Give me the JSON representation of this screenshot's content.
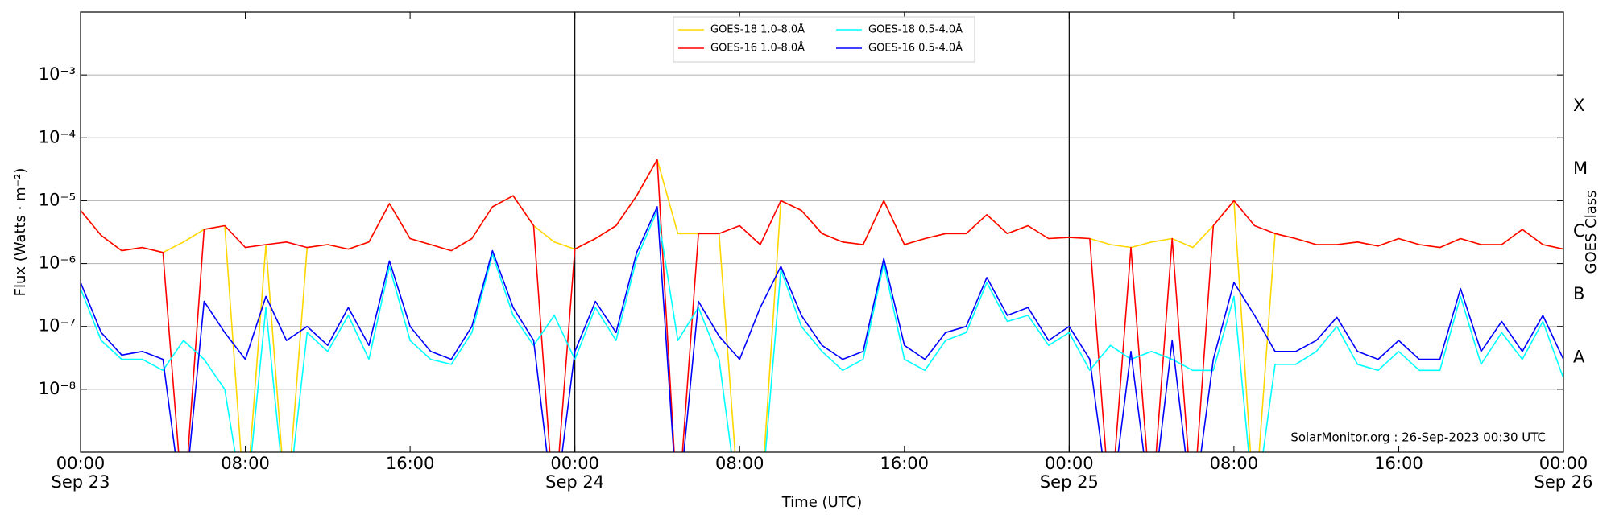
{
  "chart_data": {
    "type": "line",
    "y_scale": "log",
    "grid": true,
    "legend": "upper center",
    "ylabel": "Flux (Watts · m⁻²)",
    "xlabel": "Time (UTC)",
    "y2label": "GOES Class",
    "annotation": "SolarMonitor.org : 26-Sep-2023 00:30 UTC",
    "xlim": [
      0,
      72
    ],
    "ylim": [
      1e-09,
      0.01
    ],
    "xticks": [
      {
        "value": 0,
        "label": "00:00"
      },
      {
        "value": 8,
        "label": "08:00"
      },
      {
        "value": 16,
        "label": "16:00"
      },
      {
        "value": 24,
        "label": "00:00"
      },
      {
        "value": 32,
        "label": "08:00"
      },
      {
        "value": 40,
        "label": "16:00"
      },
      {
        "value": 48,
        "label": "00:00"
      },
      {
        "value": 56,
        "label": "08:00"
      },
      {
        "value": 64,
        "label": "16:00"
      },
      {
        "value": 72,
        "label": "00:00"
      }
    ],
    "x_day_labels": [
      {
        "value": 0,
        "label": "Sep 23"
      },
      {
        "value": 24,
        "label": "Sep 24"
      },
      {
        "value": 48,
        "label": "Sep 25"
      },
      {
        "value": 72,
        "label": "Sep 26"
      }
    ],
    "yticks": [
      {
        "value": 1e-08,
        "label": "10⁻⁸"
      },
      {
        "value": 1e-07,
        "label": "10⁻⁷"
      },
      {
        "value": 1e-06,
        "label": "10⁻⁶"
      },
      {
        "value": 1e-05,
        "label": "10⁻⁵"
      },
      {
        "value": 0.0001,
        "label": "10⁻⁴"
      },
      {
        "value": 0.001,
        "label": "10⁻³"
      }
    ],
    "class_labels": [
      {
        "value": 3.2e-08,
        "label": "A"
      },
      {
        "value": 3.2e-07,
        "label": "B"
      },
      {
        "value": 3.2e-06,
        "label": "C"
      },
      {
        "value": 3.2e-05,
        "label": "M"
      },
      {
        "value": 0.00032,
        "label": "X"
      }
    ],
    "x": [
      0,
      1,
      2,
      3,
      4,
      5,
      6,
      7,
      8,
      9,
      10,
      11,
      12,
      13,
      14,
      15,
      16,
      17,
      18,
      19,
      20,
      21,
      22,
      23,
      24,
      25,
      26,
      27,
      28,
      29,
      30,
      31,
      32,
      33,
      34,
      35,
      36,
      37,
      38,
      39,
      40,
      41,
      42,
      43,
      44,
      45,
      46,
      47,
      48,
      49,
      50,
      51,
      52,
      53,
      54,
      55,
      56,
      57,
      58,
      59,
      60,
      61,
      62,
      63,
      64,
      65,
      66,
      67,
      68,
      69,
      70,
      71,
      72
    ],
    "series": [
      {
        "name": "GOES-18 1.0-8.0Å",
        "color": "#ffd700",
        "values": [
          7e-06,
          2.8e-06,
          1.6e-06,
          1.8e-06,
          1.5e-06,
          2.2e-06,
          3.5e-06,
          4e-06,
          1e-10,
          2e-06,
          1e-10,
          1.8e-06,
          2e-06,
          1.7e-06,
          2.2e-06,
          9e-06,
          2.5e-06,
          2e-06,
          1.6e-06,
          2.5e-06,
          8e-06,
          1.2e-05,
          4e-06,
          2.2e-06,
          1.7e-06,
          2.5e-06,
          4e-06,
          1.2e-05,
          4.5e-05,
          3e-06,
          3e-06,
          3e-06,
          1e-10,
          1e-10,
          1e-05,
          7e-06,
          3e-06,
          2.2e-06,
          2e-06,
          1e-05,
          2e-06,
          2.5e-06,
          3e-06,
          3e-06,
          6e-06,
          3e-06,
          4e-06,
          2.5e-06,
          2.6e-06,
          2.5e-06,
          2e-06,
          1.8e-06,
          2.2e-06,
          2.5e-06,
          1.8e-06,
          4e-06,
          1e-05,
          1e-10,
          3e-06,
          2.5e-06,
          2e-06,
          2e-06,
          2.2e-06,
          1.9e-06,
          2.5e-06,
          2e-06,
          1.8e-06,
          2.5e-06,
          2e-06,
          2e-06,
          3.5e-06,
          2e-06,
          1.7e-06
        ]
      },
      {
        "name": "GOES-16 1.0-8.0Å",
        "color": "#ff0000",
        "values": [
          7e-06,
          2.8e-06,
          1.6e-06,
          1.8e-06,
          1.5e-06,
          1e-10,
          3.5e-06,
          4e-06,
          1.8e-06,
          2e-06,
          2.2e-06,
          1.8e-06,
          2e-06,
          1.7e-06,
          2.2e-06,
          9e-06,
          2.5e-06,
          2e-06,
          1.6e-06,
          2.5e-06,
          8e-06,
          1.2e-05,
          4e-06,
          1e-10,
          1.7e-06,
          2.5e-06,
          4e-06,
          1.2e-05,
          4.5e-05,
          1e-10,
          3e-06,
          3e-06,
          4e-06,
          2e-06,
          1e-05,
          7e-06,
          3e-06,
          2.2e-06,
          2e-06,
          1e-05,
          2e-06,
          2.5e-06,
          3e-06,
          3e-06,
          6e-06,
          3e-06,
          4e-06,
          2.5e-06,
          2.6e-06,
          2.5e-06,
          1e-10,
          1.8e-06,
          1e-10,
          2.5e-06,
          1e-10,
          4e-06,
          1e-05,
          4e-06,
          3e-06,
          2.5e-06,
          2e-06,
          2e-06,
          2.2e-06,
          1.9e-06,
          2.5e-06,
          2e-06,
          1.8e-06,
          2.5e-06,
          2e-06,
          2e-06,
          3.5e-06,
          2e-06,
          1.7e-06
        ]
      },
      {
        "name": "GOES-18 0.5-4.0Å",
        "color": "#00ffff",
        "values": [
          4e-07,
          6e-08,
          3e-08,
          3e-08,
          2e-08,
          6e-08,
          3e-08,
          1e-08,
          1e-10,
          2e-07,
          1e-10,
          8e-08,
          4e-08,
          1.5e-07,
          3e-08,
          9e-07,
          6e-08,
          3e-08,
          2.5e-08,
          8e-08,
          1.4e-06,
          1.5e-07,
          5e-08,
          1.5e-07,
          3e-08,
          2e-07,
          6e-08,
          1.2e-06,
          7e-06,
          6e-08,
          2e-07,
          3e-08,
          1e-10,
          1e-10,
          8e-07,
          1e-07,
          4e-08,
          2e-08,
          3e-08,
          1e-06,
          3e-08,
          2e-08,
          6e-08,
          8e-08,
          5e-07,
          1.2e-07,
          1.5e-07,
          5e-08,
          8e-08,
          2e-08,
          5e-08,
          3e-08,
          4e-08,
          3e-08,
          2e-08,
          2e-08,
          3e-07,
          1e-10,
          2.5e-08,
          2.5e-08,
          4e-08,
          1e-07,
          2.5e-08,
          2e-08,
          4e-08,
          2e-08,
          2e-08,
          3e-07,
          2.5e-08,
          8e-08,
          3e-08,
          1.2e-07,
          1.5e-08
        ]
      },
      {
        "name": "GOES-16 0.5-4.0Å",
        "color": "#0000ff",
        "values": [
          5e-07,
          8e-08,
          3.5e-08,
          4e-08,
          3e-08,
          1e-10,
          2.5e-07,
          8e-08,
          3e-08,
          3e-07,
          6e-08,
          1e-07,
          5e-08,
          2e-07,
          5e-08,
          1.1e-06,
          1e-07,
          4e-08,
          3e-08,
          1e-07,
          1.6e-06,
          2e-07,
          6e-08,
          1e-10,
          4e-08,
          2.5e-07,
          8e-08,
          1.5e-06,
          8e-06,
          1e-10,
          2.5e-07,
          7e-08,
          3e-08,
          2e-07,
          9e-07,
          1.5e-07,
          5e-08,
          3e-08,
          4e-08,
          1.2e-06,
          5e-08,
          3e-08,
          8e-08,
          1e-07,
          6e-07,
          1.5e-07,
          2e-07,
          6e-08,
          1e-07,
          3e-08,
          1e-10,
          4e-08,
          1e-10,
          6e-08,
          1e-10,
          3e-08,
          5e-07,
          1.5e-07,
          4e-08,
          4e-08,
          6e-08,
          1.4e-07,
          4e-08,
          3e-08,
          6e-08,
          3e-08,
          3e-08,
          4e-07,
          4e-08,
          1.2e-07,
          4e-08,
          1.5e-07,
          3e-08
        ]
      }
    ]
  }
}
